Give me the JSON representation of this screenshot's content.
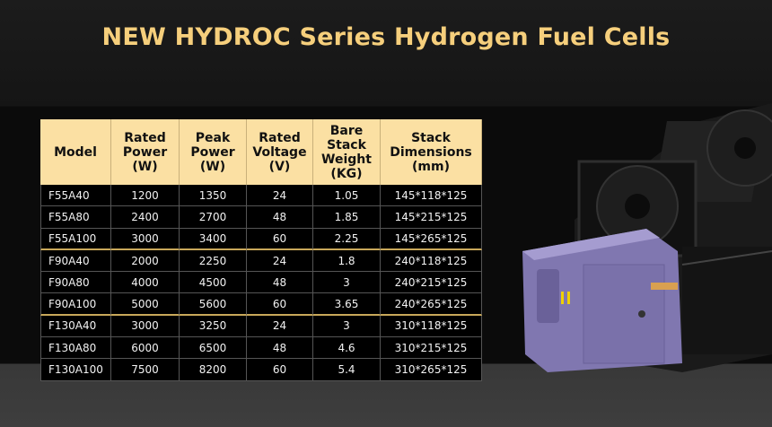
{
  "header": {
    "title": "NEW HYDROC Series Hydrogen Fuel Cells"
  },
  "table": {
    "columns": [
      "Model",
      "Rated\nPower\n(W)",
      "Peak\nPower\n(W)",
      "Rated\nVoltage\n(V)",
      "Bare\nStack\nWeight\n(KG)",
      "Stack\nDimensions\n(mm)"
    ],
    "rows": [
      [
        "F55A40",
        1200,
        1350,
        24,
        1.05,
        "145*118*125"
      ],
      [
        "F55A80",
        2400,
        2700,
        48,
        1.85,
        "145*215*125"
      ],
      [
        "F55A100",
        3000,
        3400,
        60,
        2.25,
        "145*265*125"
      ],
      [
        "F90A40",
        2000,
        2250,
        24,
        1.8,
        "240*118*125"
      ],
      [
        "F90A80",
        4000,
        4500,
        48,
        3,
        "240*215*125"
      ],
      [
        "F90A100",
        5000,
        5600,
        60,
        3.65,
        "240*265*125"
      ],
      [
        "F130A40",
        3000,
        3250,
        24,
        3,
        "310*118*125"
      ],
      [
        "F130A80",
        6000,
        6500,
        48,
        4.6,
        "310*215*125"
      ],
      [
        "F130A100",
        7500,
        8200,
        60,
        5.4,
        "310*265*125"
      ]
    ]
  }
}
